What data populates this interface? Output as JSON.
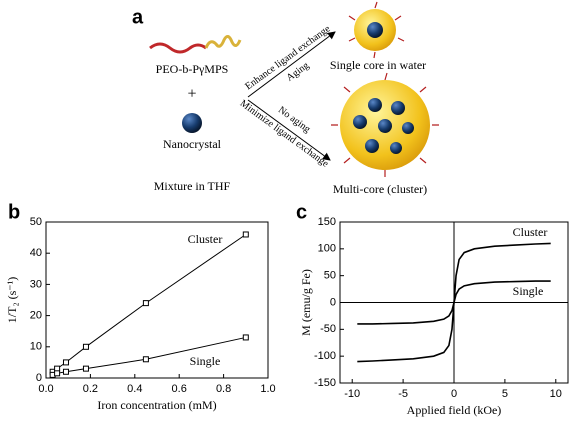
{
  "diagram": {
    "label": "a",
    "polymer": "PEO-b-PγMPS",
    "plus": "+",
    "nanocrystal": "Nanocrystal",
    "mixture": "Mixture in THF",
    "upper_arrow_top": "Enhance ligand exchange",
    "upper_arrow_bottom": "Aging",
    "lower_arrow_top": "No aging",
    "lower_arrow_bottom": "Minimize ligand exchange",
    "single_core": "Single core in water",
    "multi_core": "Multi-core (cluster)"
  },
  "chart_data": [
    {
      "type": "line",
      "panel_label": "b",
      "markers": true,
      "zero_lines": false,
      "xlabel": "Iron concentration (mM)",
      "ylabel": "1/T₂ (s⁻¹)",
      "xlim": [
        0,
        1
      ],
      "ylim": [
        0,
        50
      ],
      "xticks": [
        {
          "value": 0,
          "label": "0.0"
        },
        0.2,
        0.4,
        0.6,
        0.8,
        {
          "value": 1,
          "label": "1.0"
        }
      ],
      "yticks": [
        0,
        10,
        20,
        30,
        40,
        50
      ],
      "series": [
        {
          "name": "Cluster",
          "color": "#000000",
          "x": [
            0.03,
            0.05,
            0.09,
            0.18,
            0.45,
            0.9
          ],
          "values": [
            2,
            3,
            5,
            10,
            24,
            46
          ]
        },
        {
          "name": "Single",
          "color": "#000000",
          "x": [
            0.03,
            0.05,
            0.09,
            0.18,
            0.45,
            0.9
          ],
          "values": [
            1,
            1.5,
            2,
            3,
            6,
            13
          ]
        }
      ]
    },
    {
      "type": "line",
      "panel_label": "c",
      "markers": false,
      "zero_lines": true,
      "xlabel": "Applied field (kOe)",
      "ylabel": "M (emu/g Fe)",
      "xlim": [
        -11.2,
        11.2
      ],
      "ylim": [
        -150,
        150
      ],
      "xticks": [
        -10,
        -5,
        0,
        5,
        10
      ],
      "yticks": [
        -150,
        -100,
        -50,
        0,
        50,
        100,
        150
      ],
      "series": [
        {
          "name": "Cluster",
          "color": "#000000",
          "x": [
            -9.5,
            -8,
            -6,
            -4,
            -2,
            -1,
            -0.5,
            -0.2,
            0,
            0.2,
            0.5,
            1,
            2,
            4,
            6,
            8,
            9.5
          ],
          "values": [
            -110,
            -109,
            -107,
            -105,
            -100,
            -93,
            -80,
            -50,
            0,
            50,
            80,
            93,
            100,
            105,
            107,
            109,
            110
          ]
        },
        {
          "name": "Single",
          "color": "#000000",
          "x": [
            -9.5,
            -8,
            -6,
            -4,
            -2,
            -1,
            -0.5,
            -0.2,
            0,
            0.2,
            0.5,
            1,
            2,
            4,
            6,
            8,
            9.5
          ],
          "values": [
            -40,
            -40,
            -39,
            -38,
            -35,
            -31,
            -25,
            -15,
            0,
            15,
            25,
            31,
            35,
            38,
            39,
            40,
            40
          ]
        }
      ]
    }
  ]
}
